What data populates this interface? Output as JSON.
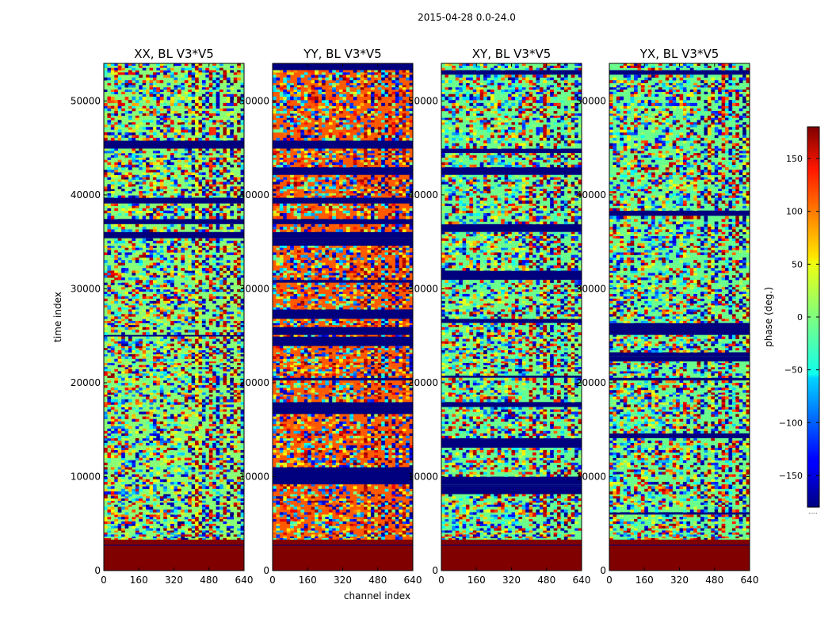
{
  "figure": {
    "suptitle": "2015-04-28 0.0-24.0",
    "xlabel": "channel index",
    "ylabel": "time index"
  },
  "chart_data": {
    "type": "heatmap",
    "xlim": [
      0,
      640
    ],
    "ylim": [
      0,
      54000
    ],
    "xticks": [
      0,
      160,
      320,
      480,
      640
    ],
    "yticks": [
      0,
      10000,
      20000,
      30000,
      40000,
      50000
    ],
    "grid": false,
    "colormap": "jet",
    "panels": [
      {
        "title": "XX, BL V3*V5",
        "dominant_color": "#87ff76"
      },
      {
        "title": "YY, BL V3*V5",
        "dominant_color": "#ff5a00"
      },
      {
        "title": "XY, BL V3*V5",
        "dominant_color": "#6aff8d"
      },
      {
        "title": "YX, BL V3*V5",
        "dominant_color": "#6aff8d"
      }
    ],
    "bottom_fill": {
      "time_range": [
        0,
        3300
      ],
      "value": 180,
      "color": "#800000"
    },
    "colorbar": {
      "label": "phase (deg.)",
      "range": [
        -180,
        180
      ],
      "ticks": [
        -150,
        -100,
        -50,
        0,
        50,
        100,
        150
      ],
      "tick_labels": [
        "−150",
        "−100",
        "−50",
        "0",
        "50",
        "100",
        "150"
      ],
      "note": "....."
    }
  }
}
